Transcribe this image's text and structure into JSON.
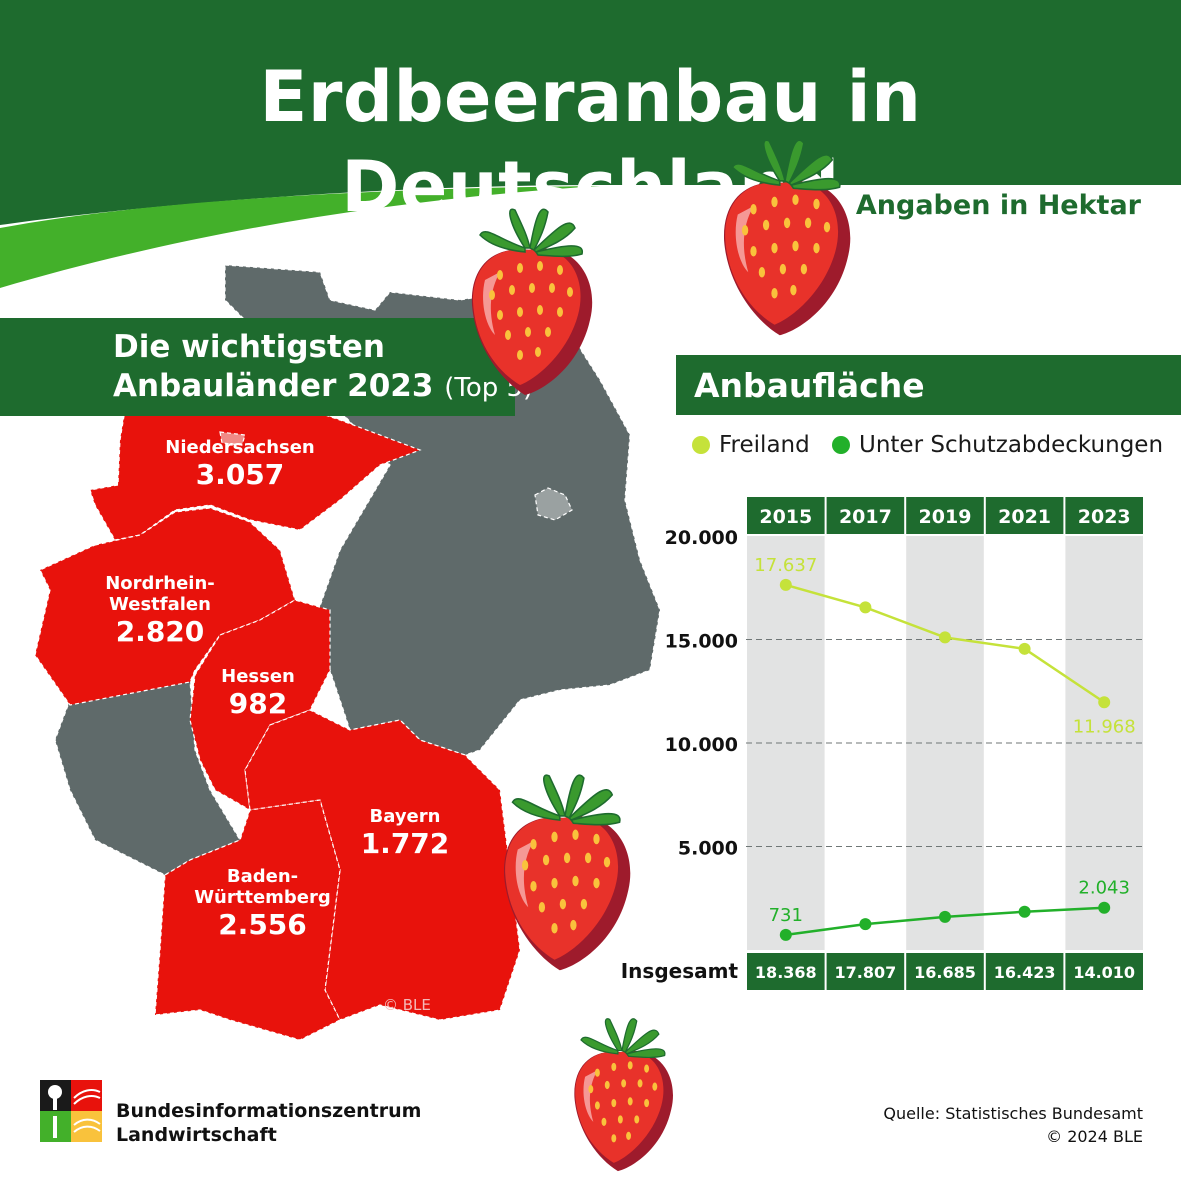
{
  "header": {
    "title": "Erdbeeranbau in Deutschland",
    "unit_note": "Angaben in Hektar"
  },
  "map_section": {
    "title_line1": "Die wichtigsten",
    "title_line2": "Anbauländer 2023",
    "title_suffix": "(Top 5)",
    "states": [
      {
        "name": "Niedersachsen",
        "value": "3.057"
      },
      {
        "name_line1": "Nordrhein-",
        "name_line2": "Westfalen",
        "value": "2.820"
      },
      {
        "name": "Hessen",
        "value": "982"
      },
      {
        "name": "Bayern",
        "value": "1.772"
      },
      {
        "name_line1": "Baden-",
        "name_line2": "Württemberg",
        "value": "2.556"
      }
    ],
    "copyright": "© BLE"
  },
  "chart_section": {
    "title": "Anbaufläche",
    "legend": [
      {
        "label": "Freiland",
        "color": "#c5e23a"
      },
      {
        "label": "Unter Schutzabdeckungen",
        "color": "#22b02a"
      }
    ],
    "total_label": "Insgesamt"
  },
  "chart_data": {
    "type": "line",
    "x": [
      "2015",
      "2017",
      "2019",
      "2021",
      "2023"
    ],
    "ylim": [
      0,
      20000
    ],
    "yticks": [
      5000,
      10000,
      15000,
      20000
    ],
    "ytick_labels": [
      "5.000",
      "10.000",
      "15.000",
      "20.000"
    ],
    "series": [
      {
        "name": "Freiland",
        "color": "#c5e23a",
        "values": [
          17637,
          16550,
          15100,
          14550,
          11968
        ],
        "labels": [
          "17.637",
          "",
          "",
          "",
          "11.968"
        ]
      },
      {
        "name": "Unter Schutzabdeckungen",
        "color": "#22b02a",
        "values": [
          731,
          1250,
          1600,
          1850,
          2043
        ],
        "labels": [
          "731",
          "",
          "",
          "",
          "2.043"
        ]
      }
    ],
    "totals": [
      "18.368",
      "17.807",
      "16.685",
      "16.423",
      "14.010"
    ],
    "grid": "dashed horizontal lines at ticks 5.000, 10.000, 15.000"
  },
  "footer": {
    "org_line1": "Bundesinformationszentrum",
    "org_line2": "Landwirtschaft",
    "source_line1": "Quelle: Statistisches Bundesamt",
    "source_line2": "© 2024 BLE"
  },
  "colors": {
    "dark_green": "#1e6b2e",
    "bright_green": "#43b02a",
    "map_red": "#e8120c",
    "map_grey": "#5f6a6a",
    "column_grey": "#e2e3e3"
  }
}
